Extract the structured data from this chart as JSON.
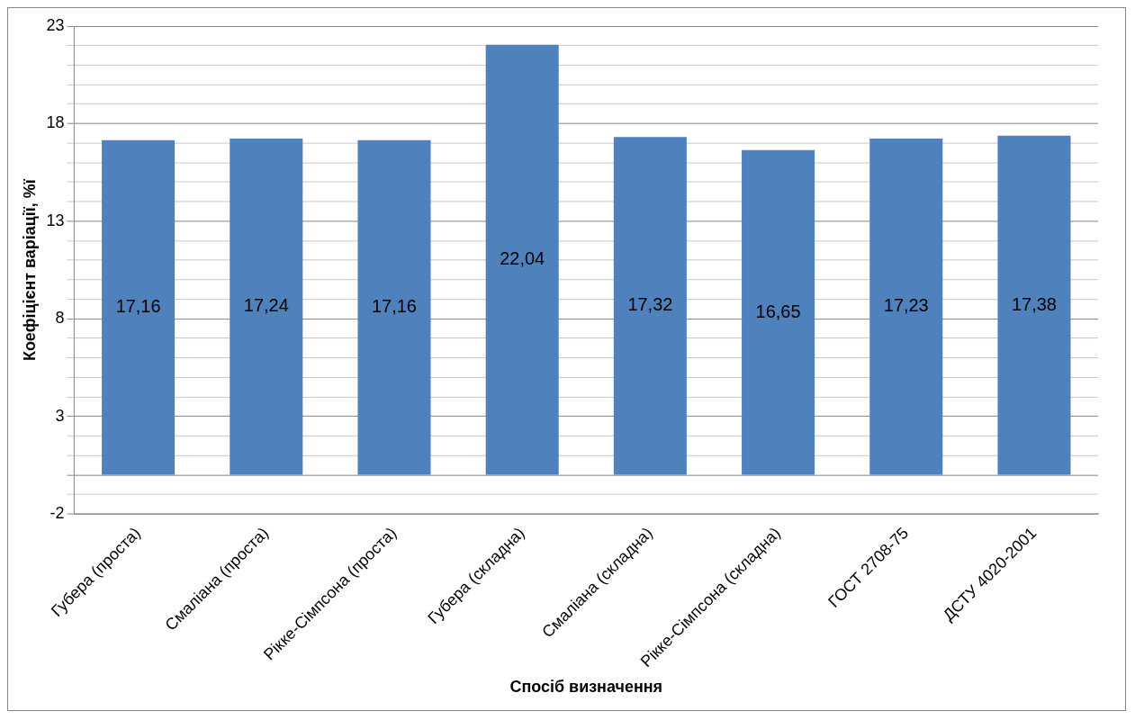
{
  "chart_data": {
    "type": "bar",
    "xlabel": "Спосіб визначення",
    "ylabel": "Коефіцієнт варіації, %ї",
    "categories": [
      "Губера (проста)",
      "Смаліана (проста)",
      "Рікке-Сімпсона (проста)",
      "Губера (складна)",
      "Смаліана (складна)",
      "Рікке-Сімпсона (складна)",
      "ГОСТ 2708-75",
      "ДСТУ 4020-2001"
    ],
    "values": [
      17.16,
      17.24,
      17.16,
      22.04,
      17.32,
      16.65,
      17.23,
      17.38
    ],
    "value_labels": [
      "17,16",
      "17,24",
      "17,16",
      "22,04",
      "17,32",
      "16,65",
      "17,23",
      "17,38"
    ],
    "color": "#4f81bd",
    "ylim": [
      -2,
      23
    ],
    "yticks": [
      -2,
      {
        "value": -1,
        "label": null
      },
      {
        "value": 0,
        "label": null
      },
      {
        "value": 1,
        "label": null
      },
      {
        "value": 2,
        "label": null
      },
      3,
      {
        "value": 4,
        "label": null
      },
      {
        "value": 5,
        "label": null
      },
      {
        "value": 6,
        "label": null
      },
      {
        "value": 7,
        "label": null
      },
      8,
      {
        "value": 9,
        "label": null
      },
      {
        "value": 10,
        "label": null
      },
      {
        "value": 11,
        "label": null
      },
      {
        "value": 12,
        "label": null
      },
      13,
      {
        "value": 14,
        "label": null
      },
      {
        "value": 15,
        "label": null
      },
      {
        "value": 16,
        "label": null
      },
      {
        "value": 17,
        "label": null
      },
      18,
      {
        "value": 19,
        "label": null
      },
      {
        "value": 20,
        "label": null
      },
      {
        "value": 21,
        "label": null
      },
      {
        "value": 22,
        "label": null
      },
      23
    ],
    "grid": "y",
    "legend": false
  }
}
